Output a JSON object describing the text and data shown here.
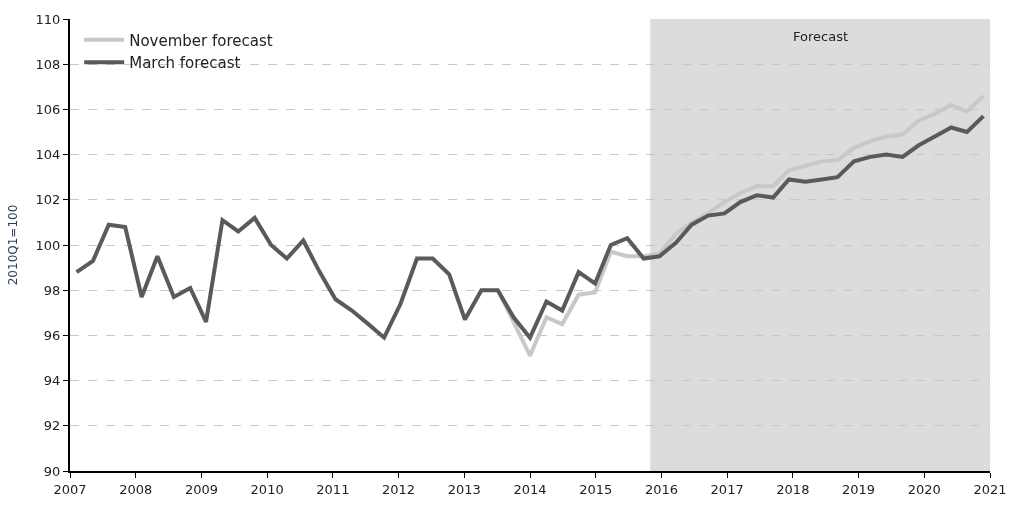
{
  "chart_data": {
    "type": "line",
    "ylabel": "2010Q1=100",
    "x": [
      2007.1,
      2007.35,
      2007.59,
      2007.84,
      2008.09,
      2008.33,
      2008.58,
      2008.83,
      2009.07,
      2009.32,
      2009.56,
      2009.81,
      2010.06,
      2010.3,
      2010.55,
      2010.8,
      2011.04,
      2011.29,
      2011.54,
      2011.78,
      2012.03,
      2012.28,
      2012.52,
      2012.77,
      2013.01,
      2013.26,
      2013.51,
      2013.75,
      2014.0,
      2014.25,
      2014.49,
      2014.74,
      2014.99,
      2015.23,
      2015.48,
      2015.73,
      2015.97,
      2016.22,
      2016.46,
      2016.71,
      2016.96,
      2017.2,
      2017.45,
      2017.7,
      2017.94,
      2018.19,
      2018.44,
      2018.68,
      2018.93,
      2019.18,
      2019.42,
      2019.67,
      2019.91,
      2020.16,
      2020.41,
      2020.65,
      2020.9
    ],
    "series": [
      {
        "name": "November forecast",
        "color": "#c8c8c8",
        "values": [
          null,
          null,
          null,
          null,
          null,
          null,
          null,
          null,
          null,
          null,
          null,
          null,
          null,
          null,
          null,
          null,
          null,
          null,
          null,
          null,
          null,
          null,
          null,
          null,
          null,
          null,
          98.0,
          96.6,
          95.1,
          96.8,
          96.5,
          97.8,
          97.9,
          99.7,
          99.5,
          99.5,
          99.6,
          100.5,
          101.0,
          101.4,
          101.9,
          102.3,
          102.6,
          102.6,
          103.3,
          103.5,
          103.7,
          103.75,
          104.3,
          104.6,
          104.8,
          104.9,
          105.5,
          105.8,
          106.2,
          105.9,
          106.6
        ]
      },
      {
        "name": "March forecast",
        "color": "#5a5a5a",
        "values": [
          98.8,
          99.3,
          100.9,
          100.8,
          97.7,
          99.5,
          97.7,
          98.1,
          96.6,
          101.1,
          100.6,
          101.2,
          100.0,
          99.4,
          100.2,
          98.8,
          97.6,
          97.1,
          96.5,
          95.9,
          97.4,
          99.4,
          99.4,
          98.7,
          96.7,
          98.0,
          98.0,
          96.8,
          95.9,
          97.5,
          97.1,
          98.8,
          98.3,
          100.0,
          100.3,
          99.4,
          99.5,
          100.1,
          100.9,
          101.3,
          101.4,
          101.9,
          102.2,
          102.1,
          102.9,
          102.8,
          102.9,
          103.0,
          103.7,
          103.9,
          104.0,
          103.9,
          104.4,
          104.8,
          105.2,
          105.0,
          105.7
        ]
      }
    ],
    "bands": [
      {
        "axis": "x",
        "from": 2015.83,
        "to": 2021,
        "label": "Forecast",
        "color": "#dcdcdc"
      }
    ],
    "xlim": [
      2007,
      2021
    ],
    "xticks": [
      2007,
      2008,
      2009,
      2010,
      2011,
      2012,
      2013,
      2014,
      2015,
      2016,
      2017,
      2018,
      2019,
      2020,
      2021
    ],
    "ylim": [
      90,
      110
    ],
    "yticks": [
      90,
      92,
      94,
      96,
      98,
      100,
      102,
      104,
      106,
      108,
      110
    ],
    "grid": "y",
    "legend": "top left",
    "marker": "none",
    "line_style": "solid"
  }
}
